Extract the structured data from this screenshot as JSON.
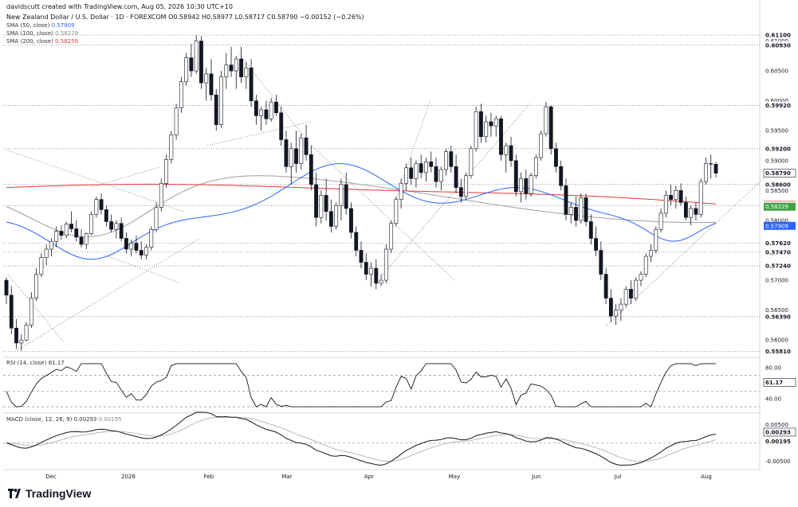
{
  "header": {
    "attribution": "davidscutt created with TradingView.com, Aug 05, 2026 10:30 UTC+10",
    "symbol_line": "New Zealand Dollar / U.S. Dollar · 1D · FOREXCOM  O0.58942 H0.58977 L0.58717 C0.58790 −0.00152 (−0.26%)",
    "sma50_label": "SMA (50, close)",
    "sma50_value": "0.57909",
    "sma100_label": "SMA (100, close)",
    "sma100_value": "0.58229",
    "sma200_label": "SMA (200, close)",
    "sma200_value": "0.58259"
  },
  "rsi": {
    "label": "RSI (14, close)",
    "value": "61.17"
  },
  "macd": {
    "label": "MACD (close, 12, 26, 9)",
    "macd_value": "0.00293",
    "signal_value": "0.00195"
  },
  "branding": {
    "logo_text": "TradingView"
  },
  "colors": {
    "up": "#ffffff",
    "down": "#131722",
    "sma50": "#2962ff",
    "sma100": "#9e9e9e",
    "sma200": "#e53935",
    "grid": "#d1d4dc",
    "text": "#131722"
  },
  "chart_data": [
    {
      "type": "candlestick",
      "title": "New Zealand Dollar / U.S. Dollar · 1D · FOREXCOM",
      "x_tick_labels": [
        "Dec",
        "2026",
        "Feb",
        "Mar",
        "Apr",
        "May",
        "Jun",
        "Jul",
        "Aug"
      ],
      "y_tick_labels": [
        "0.61000",
        "0.60500",
        "0.60000",
        "0.59500",
        "0.59000",
        "0.58500",
        "0.58000",
        "0.57500",
        "0.57000",
        "0.56500",
        "0.56000"
      ],
      "ylim": [
        0.5575,
        0.6118
      ],
      "price_labels": [
        {
          "value": "0.61100",
          "style": "line"
        },
        {
          "value": "0.60930",
          "style": "line"
        },
        {
          "value": "0.59920",
          "style": "line"
        },
        {
          "value": "0.59200",
          "style": "line"
        },
        {
          "value": "0.58790",
          "style": "current"
        },
        {
          "value": "0.58600",
          "style": "line"
        },
        {
          "value": "0.58259",
          "style": "sma200"
        },
        {
          "value": "0.58250",
          "style": "line"
        },
        {
          "value": "0.58229",
          "style": "sma100"
        },
        {
          "value": "0.57909",
          "style": "sma50"
        },
        {
          "value": "0.57620",
          "style": "line"
        },
        {
          "value": "0.57470",
          "style": "line"
        },
        {
          "value": "0.57240",
          "style": "line"
        },
        {
          "value": "0.56390",
          "style": "line"
        },
        {
          "value": "0.55810",
          "style": "line"
        }
      ],
      "horizontal_levels": [
        0.611,
        0.6093,
        0.5992,
        0.592,
        0.586,
        0.5825,
        0.5762,
        0.5747,
        0.5724,
        0.5639,
        0.5581
      ],
      "ohlc": [
        [
          0.57,
          0.5705,
          0.566,
          0.5675
        ],
        [
          0.5675,
          0.569,
          0.561,
          0.562
        ],
        [
          0.562,
          0.5635,
          0.5585,
          0.5595
        ],
        [
          0.5595,
          0.561,
          0.5582,
          0.56
        ],
        [
          0.56,
          0.563,
          0.5598,
          0.5625
        ],
        [
          0.5625,
          0.568,
          0.562,
          0.567
        ],
        [
          0.567,
          0.572,
          0.5665,
          0.571
        ],
        [
          0.571,
          0.5745,
          0.5705,
          0.5738
        ],
        [
          0.5738,
          0.576,
          0.5725,
          0.5752
        ],
        [
          0.5752,
          0.577,
          0.574,
          0.5765
        ],
        [
          0.5765,
          0.579,
          0.5755,
          0.5782
        ],
        [
          0.5782,
          0.5792,
          0.5768,
          0.5775
        ],
        [
          0.5775,
          0.5798,
          0.577,
          0.5794
        ],
        [
          0.5794,
          0.5815,
          0.578,
          0.5786
        ],
        [
          0.5786,
          0.58,
          0.5765,
          0.5772
        ],
        [
          0.5772,
          0.5785,
          0.5755,
          0.576
        ],
        [
          0.576,
          0.578,
          0.5752,
          0.5778
        ],
        [
          0.5778,
          0.5815,
          0.5775,
          0.581
        ],
        [
          0.581,
          0.584,
          0.5805,
          0.5835
        ],
        [
          0.5835,
          0.5845,
          0.581,
          0.5818
        ],
        [
          0.5818,
          0.5825,
          0.579,
          0.5798
        ],
        [
          0.5798,
          0.581,
          0.578,
          0.5785
        ],
        [
          0.5785,
          0.58,
          0.577,
          0.5795
        ],
        [
          0.5795,
          0.5805,
          0.5765,
          0.577
        ],
        [
          0.577,
          0.578,
          0.5745,
          0.5752
        ],
        [
          0.5752,
          0.5768,
          0.574,
          0.5762
        ],
        [
          0.5762,
          0.5775,
          0.5745,
          0.575
        ],
        [
          0.575,
          0.5765,
          0.5735,
          0.5742
        ],
        [
          0.5742,
          0.576,
          0.5735,
          0.5755
        ],
        [
          0.5755,
          0.579,
          0.575,
          0.5785
        ],
        [
          0.5785,
          0.583,
          0.578,
          0.5822
        ],
        [
          0.5822,
          0.587,
          0.5815,
          0.5862
        ],
        [
          0.5862,
          0.591,
          0.5855,
          0.5902
        ],
        [
          0.5902,
          0.595,
          0.5895,
          0.5943
        ],
        [
          0.5943,
          0.5995,
          0.5935,
          0.5988
        ],
        [
          0.5988,
          0.604,
          0.598,
          0.6032
        ],
        [
          0.6032,
          0.608,
          0.6025,
          0.6072
        ],
        [
          0.6072,
          0.6095,
          0.604,
          0.605
        ],
        [
          0.605,
          0.611,
          0.6045,
          0.61
        ],
        [
          0.61,
          0.6108,
          0.602,
          0.603
        ],
        [
          0.603,
          0.6055,
          0.6,
          0.6045
        ],
        [
          0.6045,
          0.607,
          0.6,
          0.601
        ],
        [
          0.601,
          0.602,
          0.595,
          0.596
        ],
        [
          0.596,
          0.605,
          0.5955,
          0.604
        ],
        [
          0.604,
          0.608,
          0.602,
          0.606
        ],
        [
          0.606,
          0.609,
          0.604,
          0.605
        ],
        [
          0.605,
          0.6075,
          0.602,
          0.607
        ],
        [
          0.607,
          0.609,
          0.603,
          0.604
        ],
        [
          0.604,
          0.6065,
          0.602,
          0.6055
        ],
        [
          0.6055,
          0.607,
          0.599,
          0.6
        ],
        [
          0.6,
          0.601,
          0.596,
          0.5975
        ],
        [
          0.5975,
          0.599,
          0.595,
          0.5985
        ],
        [
          0.5985,
          0.6,
          0.596,
          0.597
        ],
        [
          0.597,
          0.6005,
          0.5965,
          0.5998
        ],
        [
          0.5998,
          0.601,
          0.5975,
          0.598
        ],
        [
          0.598,
          0.599,
          0.5925,
          0.5935
        ],
        [
          0.5935,
          0.595,
          0.588,
          0.589
        ],
        [
          0.589,
          0.593,
          0.586,
          0.592
        ],
        [
          0.592,
          0.595,
          0.588,
          0.5895
        ],
        [
          0.5895,
          0.5945,
          0.5885,
          0.5938
        ],
        [
          0.5938,
          0.596,
          0.59,
          0.591
        ],
        [
          0.591,
          0.5925,
          0.585,
          0.586
        ],
        [
          0.586,
          0.588,
          0.579,
          0.5805
        ],
        [
          0.5805,
          0.585,
          0.5795,
          0.5842
        ],
        [
          0.5842,
          0.587,
          0.58,
          0.5815
        ],
        [
          0.5815,
          0.5835,
          0.578,
          0.579
        ],
        [
          0.579,
          0.583,
          0.5785,
          0.5825
        ],
        [
          0.5825,
          0.587,
          0.58,
          0.586
        ],
        [
          0.586,
          0.588,
          0.581,
          0.582
        ],
        [
          0.582,
          0.583,
          0.577,
          0.578
        ],
        [
          0.578,
          0.579,
          0.574,
          0.575
        ],
        [
          0.575,
          0.5765,
          0.572,
          0.573
        ],
        [
          0.573,
          0.5745,
          0.57,
          0.571
        ],
        [
          0.571,
          0.573,
          0.569,
          0.572
        ],
        [
          0.572,
          0.5735,
          0.5685,
          0.5695
        ],
        [
          0.5695,
          0.571,
          0.569,
          0.57
        ],
        [
          0.57,
          0.576,
          0.5695,
          0.5752
        ],
        [
          0.5752,
          0.58,
          0.5745,
          0.5795
        ],
        [
          0.5795,
          0.584,
          0.579,
          0.5835
        ],
        [
          0.5835,
          0.587,
          0.582,
          0.5862
        ],
        [
          0.5862,
          0.5895,
          0.585,
          0.5888
        ],
        [
          0.5888,
          0.5905,
          0.586,
          0.587
        ],
        [
          0.587,
          0.59,
          0.5855,
          0.5895
        ],
        [
          0.5895,
          0.591,
          0.587,
          0.588
        ],
        [
          0.588,
          0.5905,
          0.5865,
          0.5898
        ],
        [
          0.5898,
          0.5915,
          0.588,
          0.589
        ],
        [
          0.589,
          0.5905,
          0.5855,
          0.5865
        ],
        [
          0.5865,
          0.589,
          0.585,
          0.5885
        ],
        [
          0.5885,
          0.592,
          0.5875,
          0.5915
        ],
        [
          0.5915,
          0.5925,
          0.588,
          0.589
        ],
        [
          0.589,
          0.591,
          0.5845,
          0.5855
        ],
        [
          0.5855,
          0.587,
          0.583,
          0.584
        ],
        [
          0.584,
          0.588,
          0.5835,
          0.5875
        ],
        [
          0.5875,
          0.5925,
          0.587,
          0.592
        ],
        [
          0.592,
          0.599,
          0.5915,
          0.5982
        ],
        [
          0.5982,
          0.5995,
          0.593,
          0.594
        ],
        [
          0.594,
          0.5975,
          0.593,
          0.5965
        ],
        [
          0.5965,
          0.598,
          0.594,
          0.5958
        ],
        [
          0.5958,
          0.5975,
          0.594,
          0.597
        ],
        [
          0.597,
          0.5975,
          0.59,
          0.591
        ],
        [
          0.591,
          0.593,
          0.588,
          0.5925
        ],
        [
          0.5925,
          0.594,
          0.589,
          0.59
        ],
        [
          0.59,
          0.591,
          0.584,
          0.5848
        ],
        [
          0.5848,
          0.588,
          0.583,
          0.587
        ],
        [
          0.587,
          0.5885,
          0.5835,
          0.5845
        ],
        [
          0.5845,
          0.588,
          0.584,
          0.5875
        ],
        [
          0.5875,
          0.591,
          0.587,
          0.5905
        ],
        [
          0.5905,
          0.595,
          0.59,
          0.5945
        ],
        [
          0.5945,
          0.5998,
          0.594,
          0.599
        ],
        [
          0.599,
          0.5992,
          0.591,
          0.592
        ],
        [
          0.592,
          0.593,
          0.588,
          0.589
        ],
        [
          0.589,
          0.59,
          0.585,
          0.5858
        ],
        [
          0.5858,
          0.587,
          0.58,
          0.581
        ],
        [
          0.581,
          0.583,
          0.5795,
          0.5822
        ],
        [
          0.5822,
          0.584,
          0.579,
          0.58
        ],
        [
          0.58,
          0.5845,
          0.5795,
          0.5838
        ],
        [
          0.5838,
          0.5845,
          0.579,
          0.5798
        ],
        [
          0.5798,
          0.581,
          0.576,
          0.577
        ],
        [
          0.577,
          0.579,
          0.574,
          0.575
        ],
        [
          0.575,
          0.5765,
          0.57,
          0.571
        ],
        [
          0.571,
          0.572,
          0.566,
          0.567
        ],
        [
          0.567,
          0.5685,
          0.563,
          0.564
        ],
        [
          0.564,
          0.566,
          0.5625,
          0.565
        ],
        [
          0.565,
          0.567,
          0.5632,
          0.566
        ],
        [
          0.566,
          0.569,
          0.5655,
          0.5685
        ],
        [
          0.5685,
          0.57,
          0.566,
          0.567
        ],
        [
          0.567,
          0.5705,
          0.5665,
          0.57
        ],
        [
          0.57,
          0.5715,
          0.569,
          0.571
        ],
        [
          0.571,
          0.5745,
          0.5705,
          0.574
        ],
        [
          0.574,
          0.576,
          0.573,
          0.575
        ],
        [
          0.575,
          0.579,
          0.5745,
          0.5785
        ],
        [
          0.5785,
          0.582,
          0.578,
          0.5812
        ],
        [
          0.5812,
          0.585,
          0.5805,
          0.5842
        ],
        [
          0.5842,
          0.586,
          0.5825,
          0.5835
        ],
        [
          0.5835,
          0.5858,
          0.582,
          0.585
        ],
        [
          0.585,
          0.5862,
          0.5825,
          0.583
        ],
        [
          0.583,
          0.584,
          0.58,
          0.5805
        ],
        [
          0.5805,
          0.5825,
          0.5792,
          0.582
        ],
        [
          0.582,
          0.583,
          0.58,
          0.581
        ],
        [
          0.581,
          0.587,
          0.5805,
          0.5865
        ],
        [
          0.5865,
          0.5905,
          0.586,
          0.5895
        ],
        [
          0.5895,
          0.591,
          0.587,
          0.5894
        ],
        [
          0.5894,
          0.5898,
          0.5872,
          0.5879
        ]
      ],
      "rsi_panel": {
        "y_tick_labels": [
          "80.00",
          "40.00"
        ],
        "levels": [
          70,
          50,
          30
        ],
        "ylim": [
          25,
          90
        ]
      },
      "macd_panel": {
        "y_tick_labels": [
          "0.00500",
          "0.00000",
          "-0.00500"
        ],
        "ylim": [
          -0.0068,
          0.0068
        ]
      }
    }
  ]
}
